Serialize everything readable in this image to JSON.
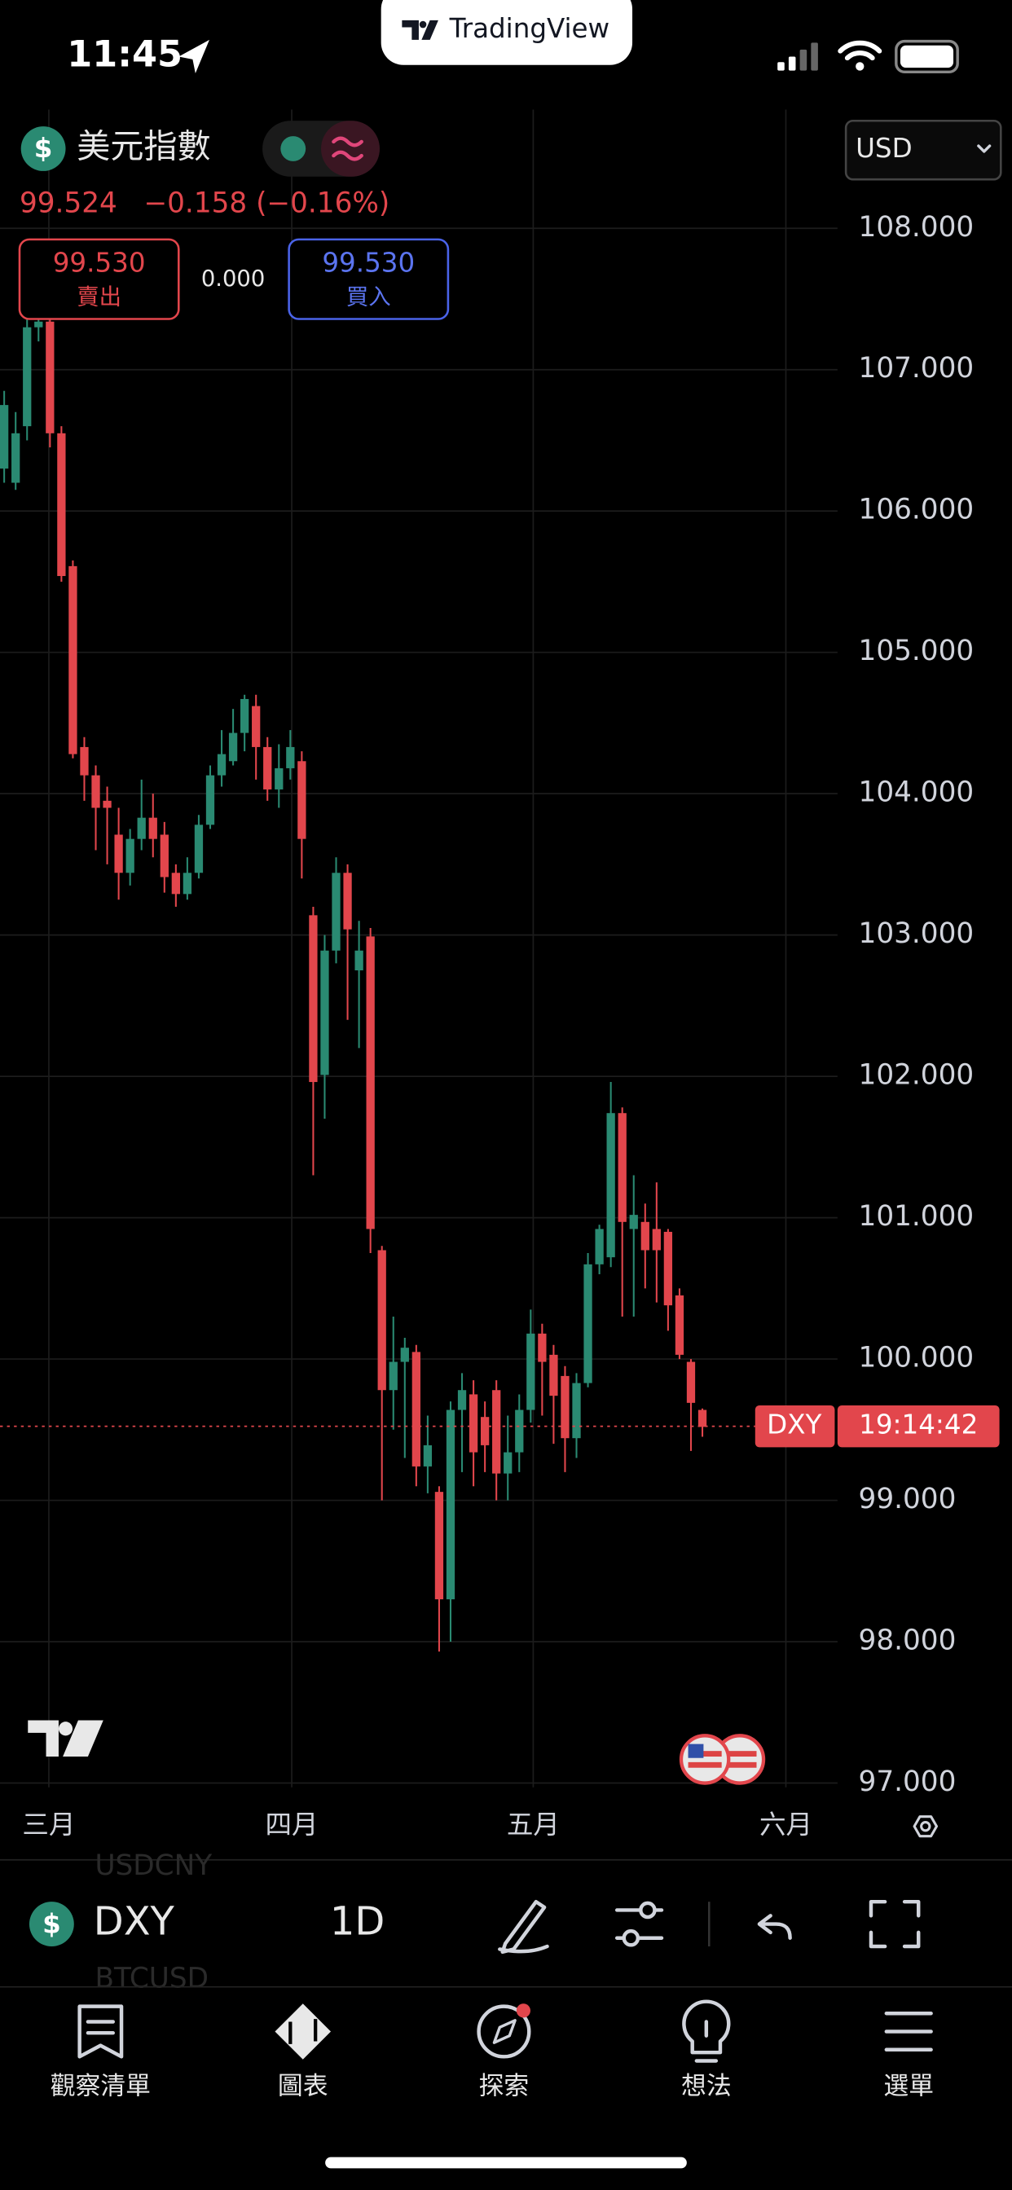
{
  "status": {
    "time": "11:45",
    "brand": "TradingView"
  },
  "header": {
    "name": "美元指數",
    "change": "−0.158 (−0.16%)",
    "sell_price": "99.530",
    "sell_label": "賣出",
    "spread": "0.000",
    "buy_price": "99.530",
    "buy_label": "買入",
    "currency": "USD"
  },
  "chart_data": {
    "type": "candlestick",
    "open": [
      106.3,
      106.2,
      106.6,
      107.3,
      107.34,
      106.55,
      105.61,
      104.33,
      104.13,
      103.95,
      103.71,
      103.44,
      103.68,
      103.83,
      103.71,
      103.44,
      103.29,
      103.44,
      103.78,
      104.13,
      104.23,
      104.43,
      104.62,
      104.33,
      104.03,
      104.18,
      104.23,
      103.14,
      102.01,
      102.89,
      103.44,
      102.75,
      102.99,
      100.77,
      99.78,
      99.98,
      100.05,
      99.24,
      99.06,
      98.3,
      99.64,
      99.75,
      99.59,
      99.78,
      99.19,
      99.34,
      99.64,
      100.18,
      100.03,
      99.88,
      99.44,
      99.83,
      100.67,
      100.72,
      101.74,
      100.92,
      100.97,
      100.92,
      100.9,
      100.45,
      99.98,
      99.64
    ],
    "high": [
      106.85,
      106.7,
      107.4,
      107.45,
      107.4,
      106.6,
      105.65,
      104.4,
      104.2,
      104.05,
      103.9,
      103.75,
      104.1,
      104.0,
      103.8,
      103.5,
      103.55,
      103.85,
      104.2,
      104.45,
      104.6,
      104.7,
      104.7,
      104.4,
      104.35,
      104.45,
      104.3,
      103.2,
      103.0,
      103.55,
      103.5,
      103.1,
      103.05,
      100.8,
      100.3,
      100.15,
      100.1,
      99.6,
      99.1,
      99.7,
      99.9,
      99.85,
      99.7,
      99.85,
      99.6,
      99.75,
      100.35,
      100.25,
      100.1,
      99.95,
      99.9,
      100.75,
      100.95,
      101.96,
      101.78,
      101.3,
      101.1,
      101.25,
      100.92,
      100.5,
      100.0,
      99.65
    ],
    "low": [
      106.2,
      106.15,
      106.5,
      107.2,
      106.45,
      105.5,
      104.25,
      103.95,
      103.6,
      103.5,
      103.25,
      103.35,
      103.6,
      103.55,
      103.3,
      103.2,
      103.25,
      103.4,
      103.75,
      104.05,
      104.2,
      104.3,
      104.1,
      103.95,
      103.9,
      104.1,
      103.4,
      101.3,
      101.7,
      102.8,
      102.4,
      102.2,
      100.75,
      99.0,
      99.5,
      99.3,
      99.1,
      99.05,
      97.93,
      98.0,
      99.2,
      99.1,
      99.2,
      99.0,
      99.0,
      99.2,
      99.55,
      99.6,
      99.4,
      99.2,
      99.3,
      99.8,
      100.6,
      100.65,
      100.3,
      100.3,
      100.5,
      100.4,
      100.2,
      100.0,
      99.35,
      99.45
    ],
    "close": [
      106.75,
      106.55,
      107.3,
      107.34,
      106.55,
      105.54,
      104.28,
      104.13,
      103.9,
      103.9,
      103.44,
      103.68,
      103.83,
      103.68,
      103.41,
      103.29,
      103.44,
      103.78,
      104.13,
      104.28,
      104.43,
      104.67,
      104.33,
      104.03,
      104.18,
      104.33,
      103.68,
      101.96,
      102.89,
      103.44,
      103.04,
      102.89,
      100.92,
      99.78,
      99.98,
      100.08,
      99.24,
      99.39,
      98.3,
      99.64,
      99.78,
      99.34,
      99.39,
      99.19,
      99.34,
      99.64,
      100.18,
      99.98,
      99.74,
      99.44,
      99.83,
      100.67,
      100.92,
      101.74,
      100.97,
      101.02,
      100.77,
      100.77,
      100.38,
      100.03,
      99.69,
      99.52
    ],
    "up_color": "#2a8a72",
    "down_color": "#e2464c",
    "ylim": [
      96.97,
      108.84
    ],
    "yticks": [
      {
        "value": 97,
        "label": "97.000"
      },
      {
        "value": 98,
        "label": "98.000"
      },
      {
        "value": 99,
        "label": "99.000"
      },
      {
        "value": 100,
        "label": "100.000"
      },
      {
        "value": 101,
        "label": "101.000"
      },
      {
        "value": 102,
        "label": "102.000"
      },
      {
        "value": 103,
        "label": "103.000"
      },
      {
        "value": 104,
        "label": "104.000"
      },
      {
        "value": 105,
        "label": "105.000"
      },
      {
        "value": 106,
        "label": "106.000"
      },
      {
        "value": 107,
        "label": "107.000"
      },
      {
        "value": 108,
        "label": "108.000"
      }
    ],
    "x_labels": [
      "三月",
      "四月",
      "五月",
      "六月"
    ],
    "grid": true,
    "last_price": 99.524,
    "last_symbol": "DXY",
    "countdown": "19:14:42"
  },
  "toolbar": {
    "symbol": "DXY",
    "interval": "1D",
    "faded_items": [
      "USDCNY",
      "BTCUSD"
    ]
  },
  "tabs": [
    "觀察清單",
    "圖表",
    "探索",
    "想法",
    "選單"
  ]
}
